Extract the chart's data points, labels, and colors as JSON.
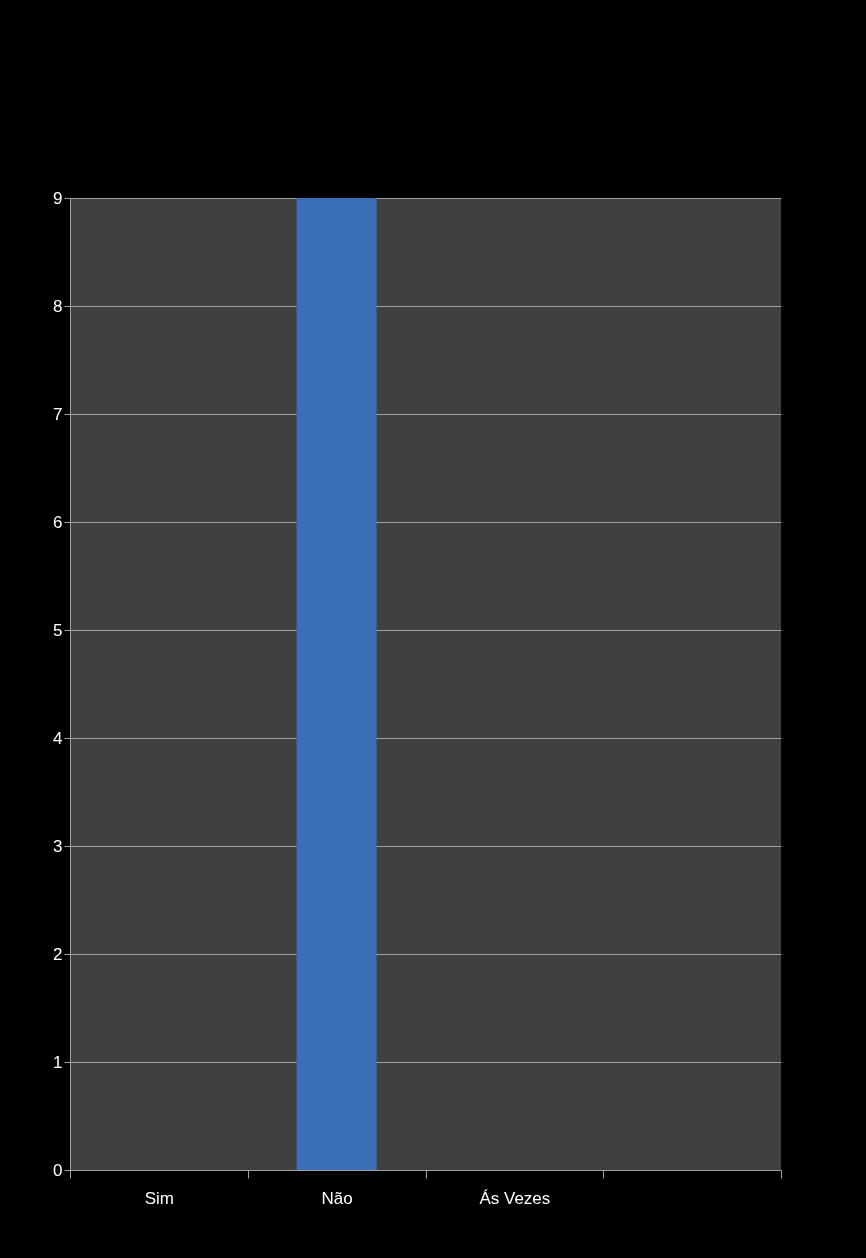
{
  "chart_data": {
    "type": "bar",
    "categories": [
      "Sim",
      "Não",
      "Ás Vezes",
      null
    ],
    "values": [
      0,
      9,
      0,
      null
    ],
    "color": "#3a6fb8",
    "ylim": [
      0,
      9
    ],
    "yticks": [
      0,
      1,
      2,
      3,
      4,
      5,
      6,
      7,
      8,
      9
    ],
    "grid": "y"
  }
}
